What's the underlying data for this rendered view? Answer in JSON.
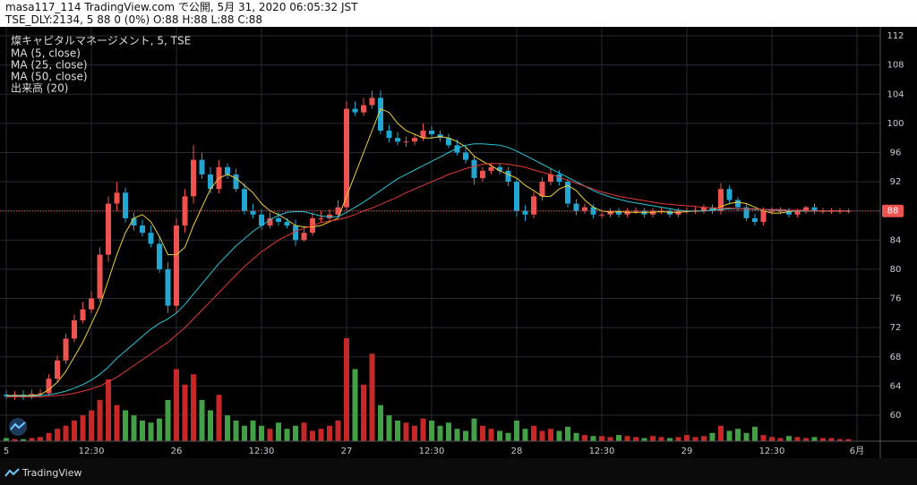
{
  "header": {
    "line1": "masa117_114 TradingView.com で公開, 5月 31, 2020 06:05:32 JST",
    "line2": "TSE_DLY:2134, 5 88 0 (0%) O:88 H:88 L:88 C:88"
  },
  "footer": {
    "brand": "TradingView"
  },
  "chart_data": {
    "type": "candlestick",
    "symbol_label": "燦キャピタルマネージメント, 5, TSE",
    "up_color": "#ef5350",
    "down_color": "#22a6d2",
    "candles": {
      "open": [
        62.8,
        62.6,
        62.8,
        62.5,
        62.9,
        63.0,
        65,
        67.5,
        70.5,
        73,
        74.5,
        76,
        82,
        89,
        90.5,
        87,
        86,
        85,
        83.5,
        80,
        75,
        86,
        90,
        95,
        93,
        91,
        94,
        93,
        91,
        88,
        87.5,
        86,
        87,
        86.5,
        86,
        84,
        85,
        87,
        87,
        87.5,
        88.5,
        102,
        101.5,
        102.5,
        103.5,
        99,
        98,
        97.5,
        97.5,
        98,
        99,
        98.5,
        98,
        97,
        96,
        95,
        92.5,
        93.5,
        94,
        93.5,
        92,
        88,
        87.5,
        90,
        92,
        93,
        92,
        89,
        88,
        88.5,
        87.5,
        87.5,
        88,
        87.5,
        88,
        88,
        87.5,
        88,
        88,
        87.5,
        88,
        88,
        88,
        88.5,
        88,
        91,
        89.5,
        88.5,
        87,
        86.5,
        88,
        88,
        88,
        87.5,
        88,
        88.5,
        88,
        88,
        88,
        88
      ],
      "high": [
        63.4,
        63.3,
        63.4,
        63.5,
        63.6,
        65.6,
        68.2,
        71.2,
        73.8,
        75.5,
        77,
        83,
        90,
        92,
        91.2,
        87.8,
        86.8,
        86,
        84.5,
        81,
        87,
        91,
        97,
        96,
        94,
        95,
        94.5,
        93.8,
        91.8,
        89,
        88.2,
        87.8,
        87.8,
        87,
        86.8,
        85.8,
        87.8,
        88,
        88.2,
        89.5,
        103,
        103,
        103.5,
        104.5,
        104.5,
        99.8,
        98.8,
        98.2,
        98.6,
        100,
        99.6,
        99,
        98.6,
        97.8,
        96.8,
        95.6,
        94,
        94.6,
        94.6,
        94,
        92.4,
        88.8,
        90.6,
        92.6,
        93.8,
        93.6,
        92.4,
        89.6,
        89,
        88.9,
        88.1,
        88.4,
        88.4,
        88.4,
        88.5,
        88.4,
        88.4,
        88.5,
        88.4,
        88.4,
        88.5,
        88.6,
        88.9,
        88.9,
        91.8,
        91.5,
        89.9,
        88.9,
        87.6,
        88.5,
        88.5,
        88.5,
        88.4,
        88.3,
        88.7,
        89,
        88.4,
        88.4,
        88.4,
        88.3
      ],
      "low": [
        62.2,
        62.1,
        62.1,
        62.2,
        62.5,
        62.7,
        64.6,
        67,
        70,
        72.6,
        74,
        75.5,
        81,
        88,
        86.4,
        85.3,
        84.5,
        83,
        79.5,
        74,
        74,
        85,
        89,
        92.4,
        90.4,
        90.4,
        92.4,
        90.6,
        87.5,
        87,
        85.4,
        85.6,
        86,
        85.6,
        83.2,
        83.8,
        84.6,
        86.4,
        86.6,
        87.2,
        88,
        101,
        101,
        102,
        98.5,
        97.4,
        97,
        96.8,
        97,
        97.6,
        98,
        97.5,
        96.6,
        95.6,
        94.5,
        91.6,
        92,
        93,
        93,
        91.4,
        87.2,
        86.6,
        87,
        89.4,
        91.5,
        91.5,
        88.5,
        87.4,
        87.6,
        87,
        87,
        87.1,
        87.1,
        87.1,
        87.6,
        87.1,
        87.1,
        87.6,
        87.1,
        87.1,
        87.6,
        87.6,
        87.6,
        87.6,
        87.5,
        89,
        88,
        86.6,
        86,
        86,
        87.5,
        87.6,
        87.1,
        87.1,
        87.6,
        87.6,
        87.6,
        87.6,
        87.6,
        87.7
      ],
      "close": [
        62.6,
        62.8,
        62.5,
        62.9,
        63.0,
        65,
        67.5,
        70.5,
        73,
        74.5,
        76,
        82,
        89,
        90.5,
        87,
        86,
        85,
        83.5,
        80,
        75,
        86,
        90,
        95,
        93,
        91,
        94,
        93,
        91,
        88,
        87.5,
        86,
        87,
        86.5,
        86,
        84,
        85,
        87,
        87,
        87.5,
        88.5,
        102,
        101.5,
        102.5,
        103.5,
        99,
        98,
        97.5,
        97.5,
        98,
        99,
        98.5,
        98,
        97,
        96,
        95,
        92.5,
        93.5,
        94,
        93.5,
        92,
        88,
        87.5,
        90,
        92,
        93,
        92,
        89,
        88,
        88.5,
        87.5,
        87.5,
        88,
        87.5,
        88,
        88,
        87.5,
        88,
        88,
        87.5,
        88,
        88,
        88,
        88.5,
        88,
        91,
        89.5,
        88.5,
        87,
        86.5,
        88,
        88,
        88,
        87.5,
        88,
        88.5,
        88,
        88,
        88,
        88,
        88
      ]
    },
    "series": [
      {
        "name": "MA (5, close)",
        "color": "#f2d13a",
        "values": [
          62.7,
          62.7,
          62.7,
          62.7,
          62.8,
          63.5,
          64.5,
          66,
          68,
          70,
          72.5,
          75,
          78.5,
          82,
          85,
          87,
          87.5,
          86.5,
          84.5,
          82,
          82,
          83,
          86,
          88.5,
          91,
          92.5,
          93,
          92.5,
          91.5,
          90.5,
          89,
          88,
          87.5,
          86.8,
          86,
          85.8,
          85.8,
          86,
          86.5,
          87,
          90,
          93,
          96,
          99,
          102,
          101.5,
          100,
          99,
          98.5,
          98,
          98,
          98.2,
          98,
          97.5,
          96.8,
          95.5,
          94.8,
          94.2,
          93.5,
          93,
          92.5,
          91.5,
          90.8,
          90,
          90,
          91,
          91.5,
          90.8,
          89.5,
          88.5,
          88,
          87.8,
          87.9,
          87.8,
          87.8,
          87.8,
          87.8,
          87.9,
          87.8,
          87.8,
          87.9,
          88,
          88,
          88.1,
          88.6,
          89,
          89.2,
          89,
          88.5,
          88,
          87.7,
          87.7,
          87.9,
          88,
          88,
          88,
          88,
          88,
          88,
          88
        ]
      },
      {
        "name": "MA (25, close)",
        "color": "#26c6da",
        "values": [
          62.6,
          62.6,
          62.6,
          62.6,
          62.7,
          62.8,
          63,
          63.3,
          63.7,
          64.2,
          64.8,
          65.6,
          66.6,
          67.8,
          68.8,
          69.8,
          70.8,
          71.8,
          72.6,
          73.2,
          74,
          75.2,
          76.6,
          78,
          79.4,
          80.8,
          82,
          83.2,
          84.2,
          85.2,
          86,
          86.8,
          87.4,
          87.8,
          87.9,
          87.9,
          87.6,
          87.3,
          87.2,
          87.2,
          87.8,
          88.5,
          89.2,
          90,
          90.8,
          91.6,
          92.4,
          93,
          93.6,
          94.2,
          94.8,
          95.4,
          96,
          96.6,
          97,
          97.2,
          97.2,
          97.1,
          97,
          96.7,
          96.2,
          95.6,
          95,
          94.4,
          93.8,
          93.2,
          92.6,
          92,
          91.4,
          90.8,
          90.3,
          89.9,
          89.6,
          89.3,
          89.1,
          88.9,
          88.7,
          88.5,
          88.3,
          88.1,
          88,
          88,
          88,
          88.1,
          88.2,
          88.3,
          88.3,
          88.3,
          88.2,
          88.2,
          88.1,
          88.1,
          88,
          88,
          88,
          88,
          88,
          88,
          88,
          88
        ]
      },
      {
        "name": "MA (50, close)",
        "color": "#e53935",
        "values": [
          62.5,
          62.5,
          62.5,
          62.5,
          62.5,
          62.6,
          62.7,
          62.8,
          63,
          63.3,
          63.6,
          64,
          64.6,
          65.2,
          66,
          66.8,
          67.6,
          68.4,
          69.2,
          70,
          71,
          72,
          73.2,
          74.4,
          75.6,
          76.8,
          78,
          79.2,
          80.4,
          81.4,
          82.4,
          83.2,
          84,
          84.6,
          85.2,
          85.6,
          86,
          86.4,
          86.6,
          86.8,
          87.1,
          87.5,
          88,
          88.4,
          88.9,
          89.4,
          89.9,
          90.5,
          91,
          91.5,
          92,
          92.5,
          93,
          93.4,
          93.8,
          94.1,
          94.4,
          94.5,
          94.5,
          94.4,
          94.2,
          94,
          93.6,
          93.3,
          93,
          92.6,
          92.2,
          91.8,
          91.4,
          91,
          90.6,
          90.3,
          90,
          89.8,
          89.6,
          89.4,
          89.2,
          89,
          88.9,
          88.8,
          88.7,
          88.6,
          88.5,
          88.4,
          88.4,
          88.4,
          88.3,
          88.3,
          88.3,
          88.2,
          88.2,
          88.2,
          88.1,
          88.1,
          88.1,
          88,
          88,
          88,
          88,
          88
        ]
      }
    ],
    "volume": {
      "name": "出来高 (20)",
      "up_color": "#c62828",
      "down_color": "#43a047",
      "values": [
        3,
        2,
        2,
        3,
        4,
        8,
        12,
        15,
        20,
        25,
        30,
        40,
        60,
        35,
        30,
        25,
        20,
        18,
        22,
        40,
        70,
        55,
        65,
        40,
        30,
        45,
        25,
        20,
        15,
        20,
        15,
        12,
        18,
        12,
        15,
        18,
        10,
        12,
        15,
        20,
        100,
        70,
        55,
        85,
        35,
        25,
        20,
        18,
        15,
        22,
        20,
        15,
        18,
        12,
        10,
        22,
        15,
        12,
        10,
        8,
        20,
        12,
        15,
        10,
        12,
        10,
        14,
        8,
        6,
        5,
        5,
        4,
        6,
        5,
        4,
        3,
        5,
        4,
        3,
        4,
        6,
        4,
        5,
        8,
        15,
        10,
        12,
        8,
        14,
        6,
        4,
        3,
        5,
        4,
        3,
        4,
        3,
        3,
        2,
        2
      ]
    },
    "last_price": 88,
    "ylim": [
      56.44,
      113.23
    ],
    "yticks": [
      60,
      64,
      68,
      72,
      76,
      80,
      84,
      88,
      92,
      96,
      100,
      104,
      108,
      112
    ],
    "xlim": [
      -0.74,
      102.74
    ],
    "xticks": [
      {
        "value": 0,
        "label": "5"
      },
      {
        "value": 10,
        "label": "12:30"
      },
      {
        "value": 20,
        "label": "26"
      },
      {
        "value": 30,
        "label": "12:30"
      },
      {
        "value": 40,
        "label": "27"
      },
      {
        "value": 50,
        "label": "12:30"
      },
      {
        "value": 60,
        "label": "28"
      },
      {
        "value": 70,
        "label": "12:30"
      },
      {
        "value": 80,
        "label": "29"
      },
      {
        "value": 90,
        "label": "12:30"
      },
      {
        "value": 100,
        "label": "6月"
      }
    ],
    "grid": true
  }
}
